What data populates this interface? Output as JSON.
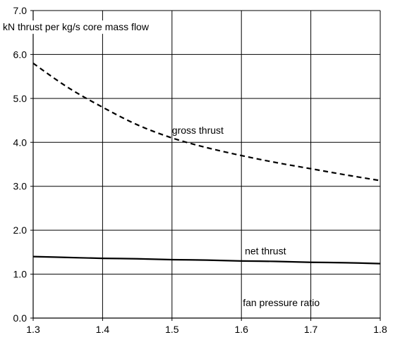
{
  "chart_data": {
    "type": "line",
    "ylabel": "kN thrust per kg/s core mass flow",
    "xlabel": "fan pressure ratio",
    "xlim": [
      1.3,
      1.8
    ],
    "ylim": [
      0.0,
      7.0
    ],
    "x_ticks": [
      "1.3",
      "1.4",
      "1.5",
      "1.6",
      "1.7",
      "1.8"
    ],
    "y_ticks": [
      "0.0",
      "1.0",
      "2.0",
      "3.0",
      "4.0",
      "5.0",
      "6.0",
      "7.0"
    ],
    "grid": true,
    "x": [
      1.3,
      1.35,
      1.4,
      1.45,
      1.5,
      1.55,
      1.6,
      1.65,
      1.7,
      1.75,
      1.8
    ],
    "series": [
      {
        "name": "gross thrust",
        "line_style": "dashed",
        "color": "#000000",
        "values": [
          5.8,
          5.25,
          4.8,
          4.4,
          4.1,
          3.88,
          3.7,
          3.54,
          3.4,
          3.26,
          3.13
        ],
        "label_at": [
          1.5,
          4.2
        ]
      },
      {
        "name": "net thrust",
        "line_style": "solid",
        "color": "#000000",
        "values": [
          1.4,
          1.38,
          1.36,
          1.35,
          1.33,
          1.32,
          1.3,
          1.29,
          1.27,
          1.26,
          1.24
        ],
        "label_at": [
          1.605,
          1.45
        ]
      }
    ],
    "xlabel_at": [
      1.6,
      0.35
    ]
  }
}
